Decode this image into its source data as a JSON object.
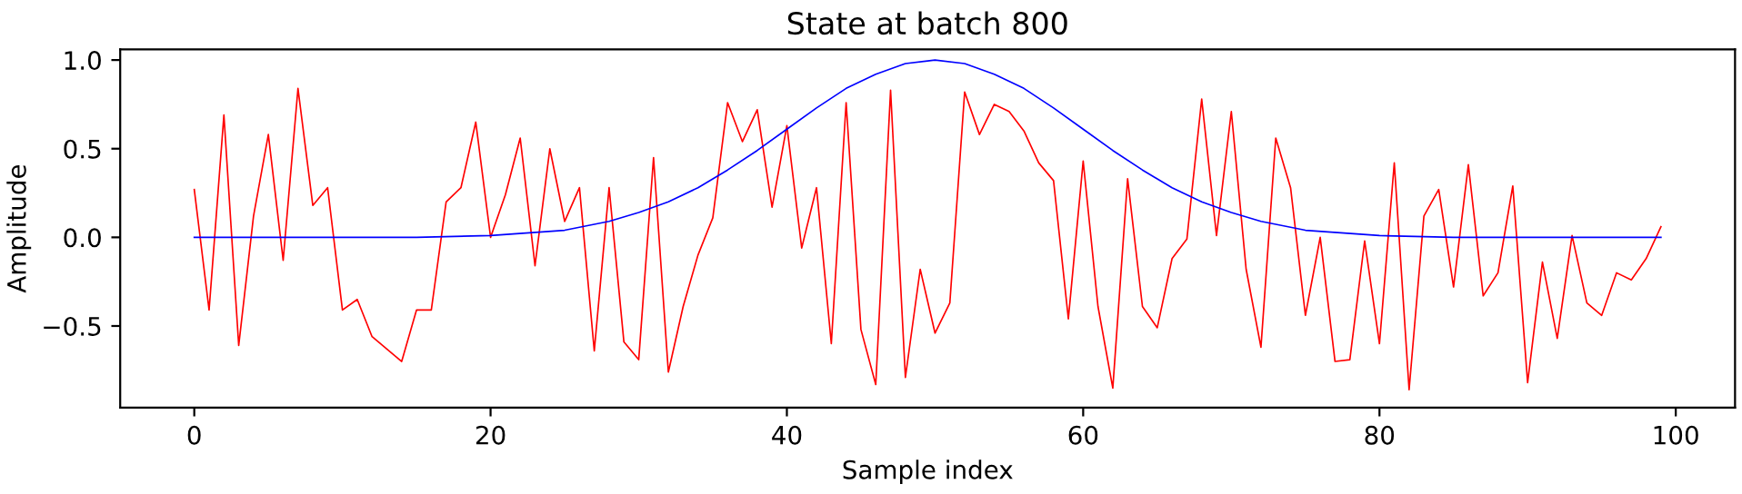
{
  "chart_data": {
    "type": "line",
    "title": "State at batch 800",
    "xlabel": "Sample index",
    "ylabel": "Amplitude",
    "xlim": [
      -5,
      104
    ],
    "ylim": [
      -0.96,
      1.06
    ],
    "xticks": [
      0,
      20,
      40,
      60,
      80,
      100
    ],
    "yticks": [
      {
        "value": -0.5,
        "label": "−0.5"
      },
      {
        "value": 0.0,
        "label": "0.0"
      },
      {
        "value": 0.5,
        "label": "0.5"
      },
      {
        "value": 1.0,
        "label": "1.0"
      }
    ],
    "grid": false,
    "legend": false,
    "marker": "none",
    "line_style": "solid",
    "series": [
      {
        "color": "#ff0000",
        "x": [
          0,
          1,
          2,
          3,
          4,
          5,
          6,
          7,
          8,
          9,
          10,
          11,
          12,
          13,
          14,
          15,
          16,
          17,
          18,
          19,
          20,
          21,
          22,
          23,
          24,
          25,
          26,
          27,
          28,
          29,
          30,
          31,
          32,
          33,
          34,
          35,
          36,
          37,
          38,
          39,
          40,
          41,
          42,
          43,
          44,
          45,
          46,
          47,
          48,
          49,
          50,
          51,
          52,
          53,
          54,
          55,
          56,
          57,
          58,
          59,
          60,
          61,
          62,
          63,
          64,
          65,
          66,
          67,
          68,
          69,
          70,
          71,
          72,
          73,
          74,
          75,
          76,
          77,
          78,
          79,
          80,
          81,
          82,
          83,
          84,
          85,
          86,
          87,
          88,
          89,
          90,
          91,
          92,
          93,
          94,
          95,
          96,
          97,
          98,
          99
        ],
        "values": [
          0.27,
          -0.41,
          0.69,
          -0.61,
          0.12,
          0.58,
          -0.13,
          0.84,
          0.18,
          0.28,
          -0.41,
          -0.35,
          -0.56,
          -0.63,
          -0.7,
          -0.41,
          -0.41,
          0.2,
          0.28,
          0.65,
          0.0,
          0.24,
          0.56,
          -0.16,
          0.5,
          0.09,
          0.28,
          -0.64,
          0.28,
          -0.59,
          -0.69,
          0.45,
          -0.76,
          -0.39,
          -0.1,
          0.11,
          0.76,
          0.54,
          0.72,
          0.17,
          0.63,
          -0.06,
          0.28,
          -0.6,
          0.76,
          -0.52,
          -0.83,
          0.83,
          -0.79,
          -0.18,
          -0.54,
          -0.37,
          0.82,
          0.58,
          0.75,
          0.71,
          0.6,
          0.42,
          0.32,
          -0.46,
          0.43,
          -0.39,
          -0.85,
          0.33,
          -0.39,
          -0.51,
          -0.12,
          -0.01,
          0.78,
          0.01,
          0.71,
          -0.18,
          -0.62,
          0.56,
          0.28,
          -0.44,
          0.0,
          -0.7,
          -0.69,
          -0.02,
          -0.6,
          0.42,
          -0.86,
          0.12,
          0.27,
          -0.28,
          0.41,
          -0.33,
          -0.2,
          0.29,
          -0.82,
          -0.14,
          -0.57,
          0.01,
          -0.37,
          -0.44,
          -0.2,
          -0.24,
          -0.12,
          0.06
        ]
      },
      {
        "color": "#0000ff",
        "x": [
          0,
          10,
          15,
          20,
          25,
          28,
          30,
          32,
          34,
          36,
          38,
          40,
          42,
          44,
          46,
          48,
          50,
          52,
          54,
          56,
          58,
          60,
          62,
          64,
          66,
          68,
          70,
          72,
          75,
          80,
          85,
          90,
          99
        ],
        "values": [
          0.0,
          0.0,
          0.0,
          0.01,
          0.04,
          0.09,
          0.14,
          0.2,
          0.28,
          0.38,
          0.49,
          0.61,
          0.73,
          0.84,
          0.92,
          0.98,
          1.0,
          0.98,
          0.92,
          0.84,
          0.73,
          0.61,
          0.49,
          0.38,
          0.28,
          0.2,
          0.14,
          0.09,
          0.04,
          0.01,
          0.0,
          0.0,
          0.0
        ]
      }
    ]
  }
}
